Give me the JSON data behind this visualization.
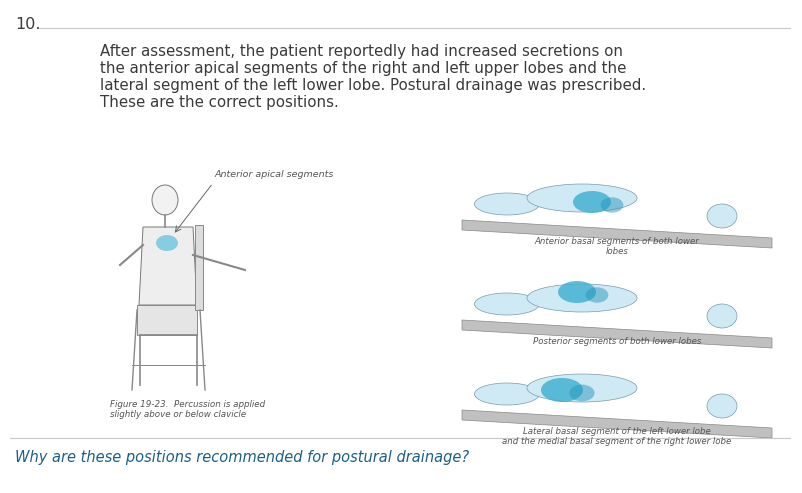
{
  "question_number": "10.",
  "body_text_line1": "After assessment, the patient reportedly had increased secretions on",
  "body_text_line2": "the anterior apical segments of the right and left upper lobes and the",
  "body_text_line3": "lateral segment of the left lower lobe. Postural drainage was prescribed.",
  "body_text_line4": "These are the correct positions.",
  "fig_label_left": "Anterior apical segments",
  "fig_caption_left_line1": "Figure 19-23.  Percussion is applied",
  "fig_caption_left_line2": "slightly above or below clavicle",
  "fig_caption_right1_line1": "Anterior basal segments of both lower",
  "fig_caption_right1_line2": "lobes",
  "fig_caption_right2": "Posterior segments of both lower lobes",
  "fig_caption_right3_line1": "Lateral basal segment of the left lower lobe",
  "fig_caption_right3_line2": "and the medial basal segment of the right lower lobe",
  "bottom_question": "Why are these positions recommended for postural drainage?",
  "bg_color": "#ffffff",
  "text_color": "#3a3a3a",
  "caption_color": "#555555",
  "question_color": "#1a5f8a",
  "line_color": "#c8c8c8",
  "body_fontsize": 10.8,
  "caption_fontsize": 6.5,
  "question_fontsize": 10.5,
  "fig_number_fontsize": 11.5
}
